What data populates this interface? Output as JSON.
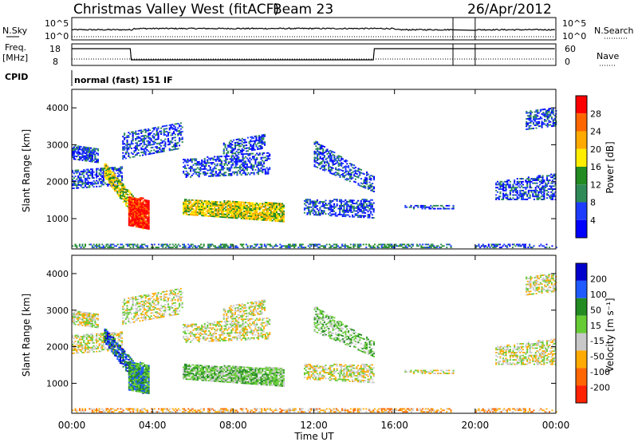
{
  "header": {
    "station": "Christmas Valley West (fitACF)",
    "beam": "Beam 23",
    "date": "26/Apr/2012"
  },
  "panels": {
    "nsky_label": "N.Sky",
    "nsearch_label": "N.Search",
    "freq_label_1": "Freq.",
    "freq_label_2": "[MHz]",
    "nave_label": "Nave",
    "cpid_label": "CPID",
    "cpid_text": "normal (fast) 151 IF",
    "noise_ticks": [
      "10^5",
      "10^0"
    ],
    "noise_right_ticks": [
      "10^5",
      "10^0"
    ],
    "freq_ticks": [
      "18",
      "8"
    ],
    "nave_ticks": [
      "60",
      "0"
    ]
  },
  "chart_data": [
    {
      "type": "heatmap",
      "name": "power",
      "ylabel": "Slant Range [km]",
      "y_ticks": [
        1000,
        2000,
        3000,
        4000
      ],
      "ylim": [
        180,
        4500
      ],
      "xlim": [
        0,
        24
      ],
      "colorbar_label": "Power [dB]",
      "colorbar_ticks": [
        "28",
        "24",
        "20",
        "16",
        "12",
        "8",
        "4"
      ],
      "colorbar_colors": [
        "#ff0000",
        "#ff6600",
        "#ffaa00",
        "#ffee00",
        "#228b22",
        "#2e8b57",
        "#1e3cff",
        "#0000ff"
      ]
    },
    {
      "type": "heatmap",
      "name": "velocity",
      "ylabel": "Slant Range [km]",
      "y_ticks": [
        1000,
        2000,
        3000,
        4000
      ],
      "ylim": [
        180,
        4500
      ],
      "xlim": [
        0,
        24
      ],
      "xlabel": "Time UT",
      "x_ticks": [
        "00:00",
        "04:00",
        "08:00",
        "12:00",
        "16:00",
        "20:00",
        "00:00"
      ],
      "colorbar_label": "Velocity [m s⁻¹]",
      "colorbar_ticks": [
        "200",
        "100",
        "50",
        "15",
        "-15",
        "-50",
        "-100",
        "-200"
      ],
      "colorbar_colors": [
        "#0000cc",
        "#1e5aff",
        "#228b22",
        "#66cc33",
        "#c8c8c8",
        "#ffaa00",
        "#ff6600",
        "#ff2200"
      ]
    }
  ]
}
